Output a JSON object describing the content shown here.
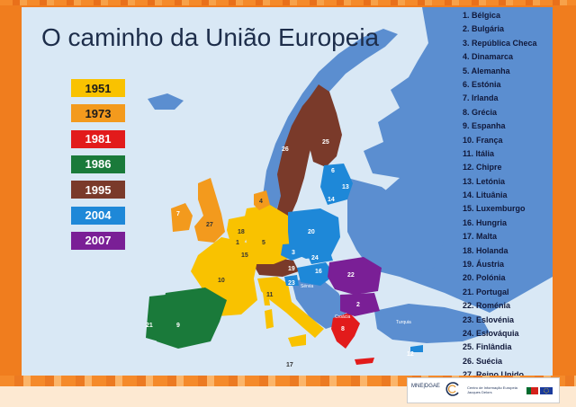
{
  "title": "O caminho da União Europeia",
  "years": [
    {
      "label": "1951",
      "color": "#f9c200",
      "text_color": "#1b1b1b"
    },
    {
      "label": "1973",
      "color": "#f39a1d",
      "text_color": "#1b1b1b"
    },
    {
      "label": "1981",
      "color": "#e21b1b",
      "text_color": "#ffffff"
    },
    {
      "label": "1986",
      "color": "#1a7a3a",
      "text_color": "#ffffff"
    },
    {
      "label": "1995",
      "color": "#7a3a2a",
      "text_color": "#ffffff"
    },
    {
      "label": "2004",
      "color": "#1e88d8",
      "text_color": "#ffffff"
    },
    {
      "label": "2007",
      "color": "#7a1f96",
      "text_color": "#ffffff"
    }
  ],
  "countries": [
    "1. Bélgica",
    "2. Bulgária",
    "3. República Checa",
    "4. Dinamarca",
    "5. Alemanha",
    "6. Estónia",
    "7. Irlanda",
    "8. Grécia",
    "9. Espanha",
    "10. França",
    "11. Itália",
    "12. Chipre",
    "13. Letónia",
    "14. Lituânia",
    "15. Luxemburgo",
    "16. Hungria",
    "17. Malta",
    "18. Holanda",
    "19. Áustria",
    "20. Polónia",
    "21. Portugal",
    "22. Roménia",
    "23. Eslovénia",
    "24. Eslováquia",
    "25. Finlândia",
    "26. Suécia",
    "27. Reino Unido"
  ],
  "map_numbers": [
    "1",
    "2",
    "3",
    "4",
    "5",
    "6",
    "7",
    "8",
    "9",
    "10",
    "11",
    "12",
    "13",
    "14",
    "15",
    "16",
    "17",
    "18",
    "19",
    "20",
    "21",
    "22",
    "23",
    "24",
    "25",
    "26",
    "27"
  ],
  "place_labels": {
    "serbia": "Sérvia",
    "croatia": "Croácia",
    "turkey": "Turquia"
  },
  "footer": {
    "org": "MNE|DGAE",
    "center_text": "Centro de Informação Europeia Jacques Delors"
  },
  "colors": {
    "sea": "#d9e8f5",
    "non_eu": "#5b8ed0",
    "non_eu_dark": "#4a7cc0"
  }
}
